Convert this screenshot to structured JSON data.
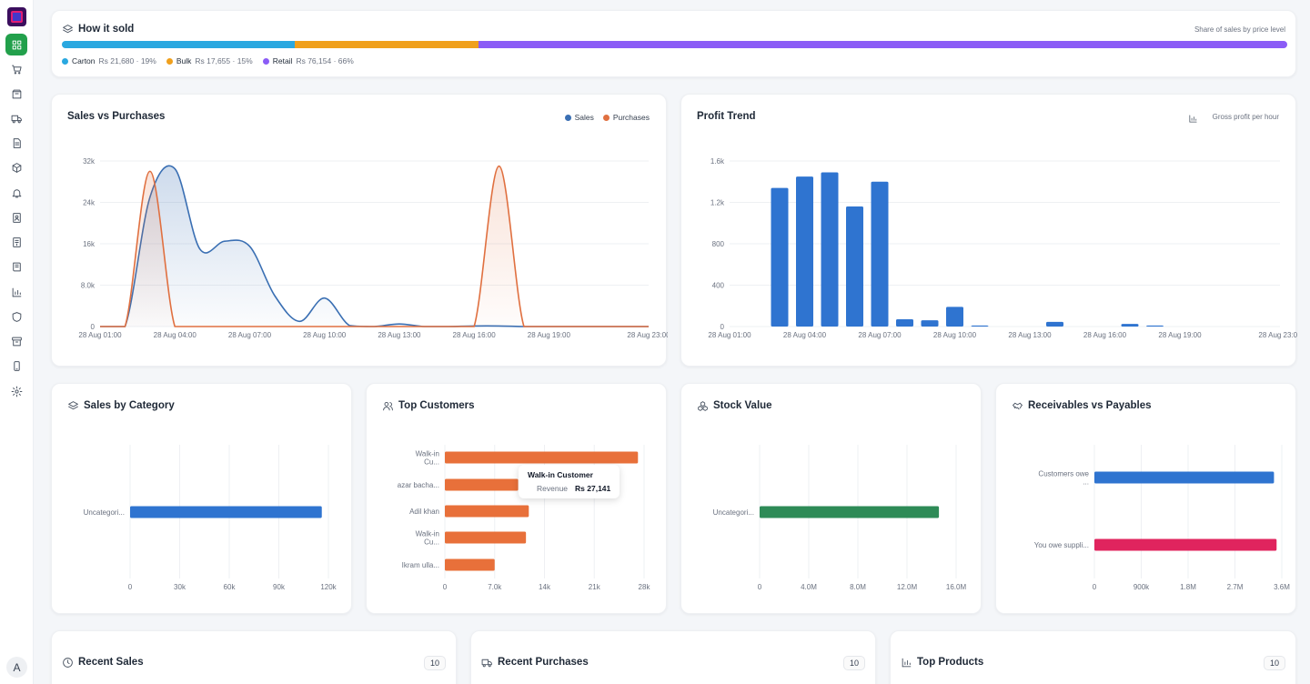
{
  "sidebar": {
    "items": [
      {
        "icon": "grid-icon",
        "active": true
      },
      {
        "icon": "cart-icon"
      },
      {
        "icon": "box-icon"
      },
      {
        "icon": "truck-icon"
      },
      {
        "icon": "document-icon"
      },
      {
        "icon": "cube-icon"
      },
      {
        "icon": "bell-icon"
      },
      {
        "icon": "contacts-icon"
      },
      {
        "icon": "receipt-icon"
      },
      {
        "icon": "book-icon"
      },
      {
        "icon": "bar-chart-icon"
      },
      {
        "icon": "shield-icon"
      },
      {
        "icon": "archive-icon"
      },
      {
        "icon": "phone-icon"
      },
      {
        "icon": "settings-icon"
      }
    ],
    "avatar_initial": "A"
  },
  "how_it_sold": {
    "title": "How it sold",
    "subtitle": "Share of sales by price level",
    "segments": [
      {
        "name": "Carton",
        "value": "Rs 21,680 · 19%",
        "share": 19,
        "color": "#2aa8e0"
      },
      {
        "name": "Bulk",
        "value": "Rs 17,655 · 15%",
        "share": 15,
        "color": "#f0a01c"
      },
      {
        "name": "Retail",
        "value": "Rs 76,154 · 66%",
        "share": 66,
        "color": "#8b5cf6"
      }
    ]
  },
  "sales_vs_purchases": {
    "title": "Sales vs Purchases",
    "legend": [
      {
        "name": "Sales",
        "color": "#3a6fb3"
      },
      {
        "name": "Purchases",
        "color": "#e07040"
      }
    ],
    "chart_data": {
      "type": "area",
      "title": "Sales vs Purchases",
      "x": [
        "28 Aug 01:00",
        "28 Aug 02:00",
        "28 Aug 03:00",
        "28 Aug 04:00",
        "28 Aug 05:00",
        "28 Aug 06:00",
        "28 Aug 07:00",
        "28 Aug 08:00",
        "28 Aug 09:00",
        "28 Aug 10:00",
        "28 Aug 11:00",
        "28 Aug 12:00",
        "28 Aug 13:00",
        "28 Aug 14:00",
        "28 Aug 15:00",
        "28 Aug 16:00",
        "28 Aug 17:00",
        "28 Aug 18:00",
        "28 Aug 19:00",
        "28 Aug 20:00",
        "28 Aug 21:00",
        "28 Aug 22:00",
        "28 Aug 23:00"
      ],
      "x_ticks": [
        "28 Aug 01:00",
        "28 Aug 04:00",
        "28 Aug 07:00",
        "28 Aug 10:00",
        "28 Aug 13:00",
        "28 Aug 16:00",
        "28 Aug 19:00",
        "28 Aug 23:00"
      ],
      "y_ticks": [
        "0",
        "8.0k",
        "16k",
        "24k",
        "32k"
      ],
      "ylim": [
        0,
        32000
      ],
      "series": [
        {
          "name": "Sales",
          "values": [
            0,
            0,
            25000,
            30500,
            15000,
            16500,
            15500,
            6000,
            1000,
            5500,
            200,
            0,
            500,
            0,
            0,
            100,
            100,
            0,
            0,
            0,
            0,
            0,
            0
          ]
        },
        {
          "name": "Purchases",
          "values": [
            0,
            0,
            30000,
            0,
            0,
            0,
            0,
            0,
            0,
            0,
            0,
            0,
            0,
            0,
            0,
            0,
            31000,
            0,
            0,
            0,
            0,
            0,
            0
          ]
        }
      ]
    }
  },
  "profit_trend": {
    "title": "Profit Trend",
    "subtitle": "Gross profit per hour",
    "chart_data": {
      "type": "bar",
      "title": "Profit Trend",
      "categories": [
        "28 Aug 01:00",
        "28 Aug 02:00",
        "28 Aug 03:00",
        "28 Aug 04:00",
        "28 Aug 05:00",
        "28 Aug 06:00",
        "28 Aug 07:00",
        "28 Aug 08:00",
        "28 Aug 09:00",
        "28 Aug 10:00",
        "28 Aug 11:00",
        "28 Aug 12:00",
        "28 Aug 13:00",
        "28 Aug 14:00",
        "28 Aug 15:00",
        "28 Aug 16:00",
        "28 Aug 17:00",
        "28 Aug 18:00",
        "28 Aug 19:00",
        "28 Aug 20:00",
        "28 Aug 21:00",
        "28 Aug 22:00",
        "28 Aug 23:00"
      ],
      "values": [
        0,
        0,
        1340,
        1450,
        1490,
        1160,
        1400,
        70,
        60,
        190,
        10,
        0,
        0,
        45,
        0,
        0,
        25,
        10,
        0,
        0,
        0,
        0,
        0
      ],
      "x_ticks": [
        "28 Aug 01:00",
        "28 Aug 04:00",
        "28 Aug 07:00",
        "28 Aug 10:00",
        "28 Aug 13:00",
        "28 Aug 16:00",
        "28 Aug 19:00",
        "28 Aug 23:00"
      ],
      "y_ticks": [
        "0",
        "400",
        "800",
        "1.2k",
        "1.6k"
      ],
      "ylim": [
        0,
        1600
      ],
      "color": "#2f74d0"
    }
  },
  "sales_by_category": {
    "title": "Sales by Category",
    "chart_data": {
      "type": "bar",
      "orientation": "horizontal",
      "categories": [
        "Uncategori..."
      ],
      "values": [
        116000
      ],
      "x_ticks": [
        "0",
        "30k",
        "60k",
        "90k",
        "120k"
      ],
      "xlim": [
        0,
        120000
      ],
      "color": "#2f74d0"
    }
  },
  "top_customers": {
    "title": "Top Customers",
    "chart_data": {
      "type": "bar",
      "orientation": "horizontal",
      "categories": [
        "Walk-in Cu...",
        "azar bacha...",
        "Adil khan",
        "Walk-in Cu...",
        "Ikram ulla..."
      ],
      "values": [
        27141,
        10300,
        11800,
        11400,
        7000
      ],
      "x_ticks": [
        "0",
        "7.0k",
        "14k",
        "21k",
        "28k"
      ],
      "xlim": [
        0,
        28000
      ],
      "color": "#e8703a"
    },
    "tooltip": {
      "title": "Walk-in Customer",
      "label": "Revenue",
      "value": "Rs 27,141"
    }
  },
  "stock_value": {
    "title": "Stock Value",
    "chart_data": {
      "type": "bar",
      "orientation": "horizontal",
      "categories": [
        "Uncategori..."
      ],
      "values": [
        14600000
      ],
      "x_ticks": [
        "0",
        "4.0M",
        "8.0M",
        "12.0M",
        "16.0M"
      ],
      "xlim": [
        0,
        16000000
      ],
      "color": "#2e8b57"
    }
  },
  "receivables_vs_payables": {
    "title": "Receivables vs Payables",
    "chart_data": {
      "type": "bar",
      "orientation": "horizontal",
      "categories": [
        "Customers owe ...",
        "You owe suppli..."
      ],
      "values": [
        3450000,
        3500000
      ],
      "x_ticks": [
        "0",
        "900k",
        "1.8M",
        "2.7M",
        "3.6M"
      ],
      "xlim": [
        0,
        3600000
      ],
      "colors": [
        "#2f74d0",
        "#e0245e"
      ]
    }
  },
  "bottom_cards": [
    {
      "title": "Recent Sales",
      "count": "10",
      "icon": "clock-icon"
    },
    {
      "title": "Recent Purchases",
      "count": "10",
      "icon": "truck-icon"
    },
    {
      "title": "Top Products",
      "count": "10",
      "icon": "bar-chart-icon"
    }
  ]
}
